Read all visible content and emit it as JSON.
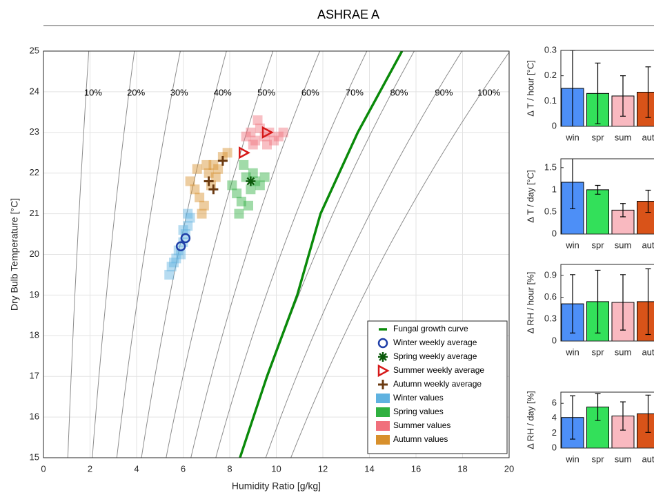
{
  "chart_data": [
    {
      "type": "scatter",
      "title": "ASHRAE A",
      "xlabel": "Humidity Ratio [g/kg]",
      "ylabel": "Dry Bulb Temperature [°C]",
      "xlim": [
        0,
        20
      ],
      "ylim": [
        15,
        25
      ],
      "xticks": [
        0,
        2,
        4,
        6,
        8,
        10,
        12,
        14,
        16,
        18,
        20
      ],
      "yticks": [
        15,
        16,
        17,
        18,
        19,
        20,
        21,
        22,
        23,
        24,
        25
      ],
      "grid": true,
      "legend": "lower right",
      "rh_lines": {
        "labels": [
          "10%",
          "20%",
          "30%",
          "40%",
          "50%",
          "60%",
          "70%",
          "80%",
          "90%",
          "100%"
        ],
        "values": [
          10,
          20,
          30,
          40,
          50,
          60,
          70,
          80,
          90,
          100
        ],
        "label_y": 24
      },
      "series": [
        {
          "name": "Fungal growth curve",
          "marker": "line",
          "color": "#0a8a0a",
          "x": [
            8.44,
            9.6,
            10.9,
            11.9,
            13.5,
            15.4
          ],
          "y": [
            15,
            17,
            19,
            21,
            23,
            25
          ]
        },
        {
          "name": "Winter weekly average",
          "marker": "circle",
          "color": "#1f3fa8",
          "x": [
            5.9,
            6.1
          ],
          "y": [
            20.2,
            20.4
          ]
        },
        {
          "name": "Spring weekly average",
          "marker": "star",
          "color": "#0b5a0b",
          "x": [
            8.9
          ],
          "y": [
            21.8
          ]
        },
        {
          "name": "Summer weekly average",
          "marker": "triangle",
          "color": "#d61a1a",
          "x": [
            9.6,
            8.6
          ],
          "y": [
            23.0,
            22.5
          ]
        },
        {
          "name": "Autumn weekly average",
          "marker": "plus",
          "color": "#6b3a10",
          "x": [
            7.7,
            7.1,
            7.3
          ],
          "y": [
            22.3,
            21.8,
            21.6
          ]
        },
        {
          "name": "Winter values",
          "marker": "square",
          "color": "#5fb2e0",
          "x": [
            5.4,
            5.5,
            5.7,
            5.9,
            6.0,
            6.1,
            6.2,
            6.3,
            6.2,
            6.0,
            5.8,
            5.6
          ],
          "y": [
            19.5,
            19.7,
            19.9,
            20.0,
            20.3,
            20.5,
            20.7,
            20.9,
            21.0,
            20.6,
            20.1,
            19.8
          ]
        },
        {
          "name": "Spring values",
          "marker": "square",
          "color": "#2fb040",
          "x": [
            8.1,
            8.3,
            8.5,
            8.7,
            8.9,
            9.1,
            9.3,
            9.5,
            8.6,
            8.8,
            9.0,
            8.4
          ],
          "y": [
            21.7,
            21.5,
            21.3,
            21.9,
            21.6,
            21.8,
            21.7,
            21.9,
            22.2,
            21.2,
            22.0,
            21.0
          ]
        },
        {
          "name": "Summer values",
          "marker": "square",
          "color": "#f0707c",
          "x": [
            8.7,
            8.9,
            9.1,
            9.3,
            9.5,
            9.7,
            9.9,
            10.1,
            10.3,
            9.2,
            9.6,
            9.0
          ],
          "y": [
            22.9,
            23.0,
            22.8,
            23.1,
            22.9,
            23.0,
            22.8,
            22.9,
            23.0,
            23.3,
            22.7,
            22.7
          ]
        },
        {
          "name": "Autumn values",
          "marker": "square",
          "color": "#d8902c",
          "x": [
            6.3,
            6.5,
            6.7,
            6.9,
            7.1,
            7.3,
            7.5,
            7.7,
            7.9,
            6.8,
            7.0,
            7.2,
            6.6,
            7.4
          ],
          "y": [
            21.8,
            21.6,
            21.4,
            21.2,
            22.0,
            22.2,
            22.1,
            22.4,
            22.5,
            21.0,
            22.2,
            21.7,
            22.1,
            21.9
          ]
        }
      ]
    },
    {
      "type": "bar",
      "ylabel": "Δ T / hour [°C]",
      "categories": [
        "win",
        "spr",
        "sum",
        "aut"
      ],
      "values": [
        0.15,
        0.13,
        0.12,
        0.135
      ],
      "errors": [
        0.15,
        0.12,
        0.08,
        0.1
      ],
      "colors": [
        "#4d8ff7",
        "#33e05a",
        "#f9b9c0",
        "#d95319"
      ],
      "ylim": [
        0,
        0.3
      ],
      "yticks": [
        0,
        0.1,
        0.2,
        0.3
      ]
    },
    {
      "type": "bar",
      "ylabel": "Δ T / day [°C]",
      "categories": [
        "win",
        "spr",
        "sum",
        "aut"
      ],
      "values": [
        1.17,
        1.0,
        0.54,
        0.74
      ],
      "errors": [
        0.6,
        0.1,
        0.15,
        0.25
      ],
      "colors": [
        "#4d8ff7",
        "#33e05a",
        "#f9b9c0",
        "#d95319"
      ],
      "ylim": [
        0,
        1.7
      ],
      "yticks": [
        0,
        0.5,
        1,
        1.5
      ]
    },
    {
      "type": "bar",
      "ylabel": "Δ RH / hour [%]",
      "categories": [
        "win",
        "spr",
        "sum",
        "aut"
      ],
      "values": [
        0.51,
        0.54,
        0.53,
        0.54
      ],
      "errors": [
        0.4,
        0.43,
        0.38,
        0.45
      ],
      "colors": [
        "#4d8ff7",
        "#33e05a",
        "#f9b9c0",
        "#d95319"
      ],
      "ylim": [
        0,
        1.05
      ],
      "yticks": [
        0,
        0.3,
        0.6,
        0.9
      ]
    },
    {
      "type": "bar",
      "ylabel": "Δ RH / day [%]",
      "categories": [
        "win",
        "spr",
        "sum",
        "aut"
      ],
      "values": [
        4.1,
        5.5,
        4.3,
        4.6
      ],
      "errors": [
        2.9,
        1.8,
        1.9,
        2.5
      ],
      "colors": [
        "#4d8ff7",
        "#33e05a",
        "#f9b9c0",
        "#d95319"
      ],
      "ylim": [
        0,
        7.5
      ],
      "yticks": [
        0,
        2,
        4,
        6
      ]
    }
  ]
}
